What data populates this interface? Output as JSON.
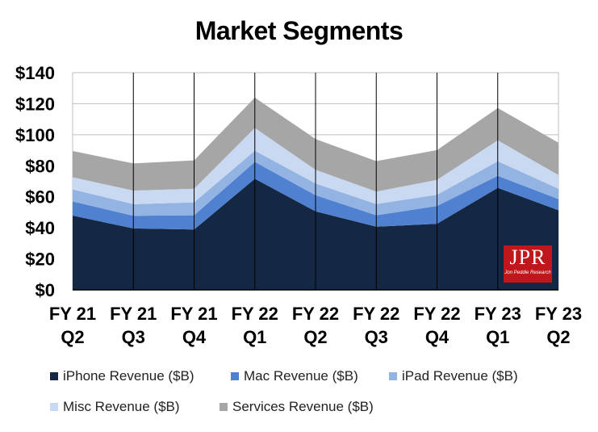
{
  "chart_data": {
    "type": "area",
    "stacked": true,
    "title": "Market Segments",
    "categories": [
      [
        "FY 21",
        "Q2"
      ],
      [
        "FY 21",
        "Q3"
      ],
      [
        "FY 21",
        "Q4"
      ],
      [
        "FY 22",
        "Q1"
      ],
      [
        "FY 22",
        "Q2"
      ],
      [
        "FY 22",
        "Q3"
      ],
      [
        "FY 22",
        "Q4"
      ],
      [
        "FY 23",
        "Q1"
      ],
      [
        "FY 23",
        "Q2"
      ]
    ],
    "y_ticks": [
      "$0",
      "$20",
      "$40",
      "$60",
      "$80",
      "$100",
      "$120",
      "$140"
    ],
    "ylim": [
      0,
      140
    ],
    "y_step": 20,
    "grid": true,
    "legend_position": "bottom",
    "series": [
      {
        "name": "iPhone Revenue ($B)",
        "color": "#142743",
        "values": [
          47.9,
          39.6,
          38.9,
          71.6,
          50.6,
          40.7,
          42.6,
          65.8,
          51.3
        ]
      },
      {
        "name": "Mac Revenue ($B)",
        "color": "#4f81d0",
        "values": [
          9.1,
          8.2,
          9.2,
          10.9,
          10.4,
          7.4,
          11.5,
          7.7,
          7.2
        ]
      },
      {
        "name": "iPad Revenue ($B)",
        "color": "#93b3e3",
        "values": [
          7.8,
          7.4,
          8.3,
          7.2,
          7.6,
          7.2,
          7.2,
          9.4,
          6.7
        ]
      },
      {
        "name": "Misc Revenue ($B)",
        "color": "#c9d9f1",
        "values": [
          7.8,
          8.8,
          8.8,
          14.7,
          8.8,
          8.1,
          9.6,
          13.5,
          8.8
        ]
      },
      {
        "name": "Services Revenue ($B)",
        "color": "#a6a6a6",
        "values": [
          16.9,
          17.5,
          18.3,
          19.5,
          19.8,
          19.6,
          19.2,
          20.8,
          20.9
        ]
      }
    ]
  },
  "logo": {
    "main": "JPR",
    "sub": "Jon Peddie Research"
  }
}
